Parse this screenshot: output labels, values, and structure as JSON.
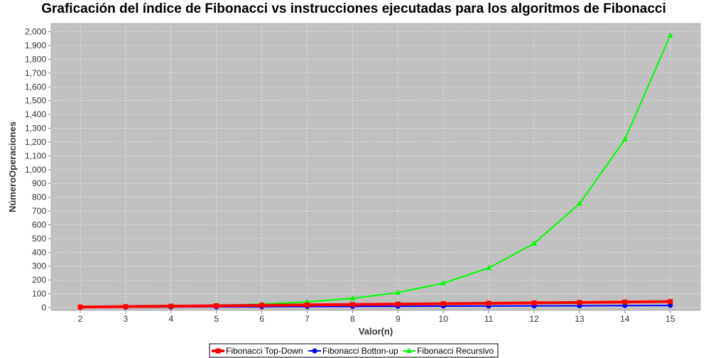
{
  "chart_data": {
    "type": "line",
    "title": "Graficación del índice de Fibonacci vs instrucciones ejecutadas para los algoritmos de Fibonacci",
    "xlabel": "Valor(n)",
    "ylabel": "NúmeroOperaciones",
    "x": [
      2,
      3,
      4,
      5,
      6,
      7,
      8,
      9,
      10,
      11,
      12,
      13,
      14,
      15
    ],
    "x_tick_labels": [
      "2",
      "3",
      "4",
      "5",
      "6",
      "7",
      "8",
      "9",
      "10",
      "11",
      "12",
      "13",
      "14",
      "15"
    ],
    "ylim": [
      0,
      2050
    ],
    "y_ticks": [
      0,
      100,
      200,
      300,
      400,
      500,
      600,
      700,
      800,
      900,
      1000,
      1100,
      1200,
      1300,
      1400,
      1500,
      1600,
      1700,
      1800,
      1900,
      2000
    ],
    "y_tick_labels": [
      "0",
      "100",
      "200",
      "300",
      "400",
      "500",
      "600",
      "700",
      "800",
      "900",
      "1,000",
      "1,100",
      "1,200",
      "1,300",
      "1,400",
      "1,500",
      "1,600",
      "1,700",
      "1,800",
      "1,900",
      "2,000"
    ],
    "grid": true,
    "legend_position": "bottom",
    "background_color": "#c0c0c0",
    "series": [
      {
        "name": "Fibonacci Top-Down",
        "color": "#ff0000",
        "marker": "square",
        "values": [
          4,
          7,
          10,
          13,
          16,
          19,
          22,
          25,
          28,
          31,
          34,
          37,
          40,
          43
        ]
      },
      {
        "name": "Fibonacci Botton-up",
        "color": "#0000ff",
        "marker": "circle",
        "values": [
          2,
          3,
          4,
          5,
          6,
          7,
          8,
          9,
          10,
          11,
          12,
          13,
          14,
          15
        ]
      },
      {
        "name": "Fibonacci Recursivo",
        "color": "#00ff00",
        "marker": "triangle",
        "values": [
          3,
          5,
          9,
          15,
          25,
          41,
          67,
          109,
          177,
          287,
          465,
          753,
          1219,
          1973
        ]
      }
    ]
  }
}
